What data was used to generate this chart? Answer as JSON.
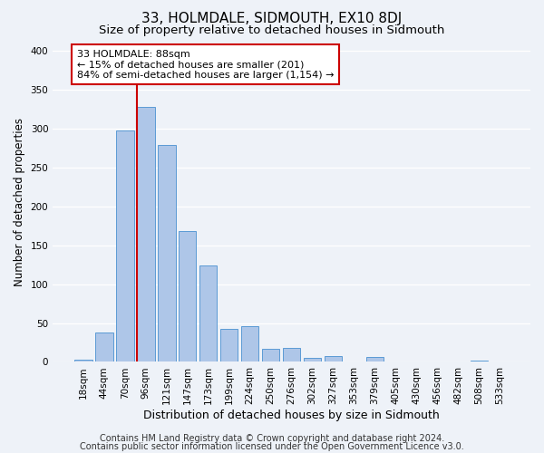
{
  "title": "33, HOLMDALE, SIDMOUTH, EX10 8DJ",
  "subtitle": "Size of property relative to detached houses in Sidmouth",
  "xlabel": "Distribution of detached houses by size in Sidmouth",
  "ylabel": "Number of detached properties",
  "bar_labels": [
    "18sqm",
    "44sqm",
    "70sqm",
    "96sqm",
    "121sqm",
    "147sqm",
    "173sqm",
    "199sqm",
    "224sqm",
    "250sqm",
    "276sqm",
    "302sqm",
    "327sqm",
    "353sqm",
    "379sqm",
    "405sqm",
    "430sqm",
    "456sqm",
    "482sqm",
    "508sqm",
    "533sqm"
  ],
  "bar_values": [
    3,
    38,
    298,
    328,
    279,
    168,
    124,
    42,
    46,
    17,
    18,
    5,
    7,
    1,
    6,
    0,
    0,
    0,
    0,
    2,
    0
  ],
  "bar_color": "#aec6e8",
  "bar_edge_color": "#5b9bd5",
  "vline_index": 3,
  "vline_color": "#cc0000",
  "annotation_text": "33 HOLMDALE: 88sqm\n← 15% of detached houses are smaller (201)\n84% of semi-detached houses are larger (1,154) →",
  "annotation_box_color": "#ffffff",
  "annotation_box_edge": "#cc0000",
  "ylim": [
    0,
    410
  ],
  "yticks": [
    0,
    50,
    100,
    150,
    200,
    250,
    300,
    350,
    400
  ],
  "footer_line1": "Contains HM Land Registry data © Crown copyright and database right 2024.",
  "footer_line2": "Contains public sector information licensed under the Open Government Licence v3.0.",
  "title_fontsize": 11,
  "subtitle_fontsize": 9.5,
  "xlabel_fontsize": 9,
  "ylabel_fontsize": 8.5,
  "tick_fontsize": 7.5,
  "annotation_fontsize": 8,
  "footer_fontsize": 7,
  "bg_color": "#eef2f8"
}
